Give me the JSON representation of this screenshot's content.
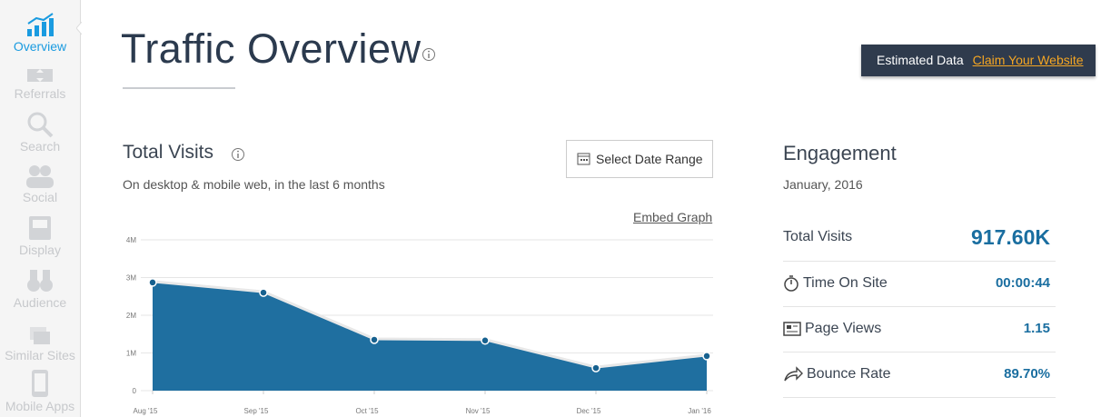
{
  "sidebar": {
    "items": [
      "Overview",
      "Referrals",
      "Search",
      "Social",
      "Display",
      "Audience",
      "Similar Sites",
      "Mobile Apps"
    ]
  },
  "header": {
    "title": "Traffic Overview"
  },
  "banner": {
    "text": "Estimated Data",
    "link": "Claim Your Website"
  },
  "total_visits": {
    "title": "Total Visits",
    "subtitle": "On desktop & mobile web, in the last 6 months",
    "button": "Select Date Range",
    "embed": "Embed Graph"
  },
  "chart_data": {
    "type": "area",
    "categories": [
      "Aug '15",
      "Sep '15",
      "Oct '15",
      "Nov '15",
      "Dec '15",
      "Jan '16"
    ],
    "values": [
      2870000,
      2600000,
      1350000,
      1330000,
      600000,
      917600
    ],
    "color": "#1f6fa0",
    "ylim": [
      0,
      4000000
    ],
    "yticks": [
      0,
      {
        "value": 1000000,
        "label": "1M"
      },
      {
        "value": 2000000,
        "label": "2M"
      },
      {
        "value": 3000000,
        "label": "3M"
      },
      {
        "value": 4000000,
        "label": "4M"
      }
    ],
    "grid": true
  },
  "engagement": {
    "title": "Engagement",
    "period": "January, 2016",
    "rows": [
      {
        "label": "Total Visits",
        "value": "917.60K"
      },
      {
        "label": "Time On Site",
        "value": "00:00:44"
      },
      {
        "label": "Page Views",
        "value": "1.15"
      },
      {
        "label": "Bounce Rate",
        "value": "89.70%"
      }
    ]
  }
}
